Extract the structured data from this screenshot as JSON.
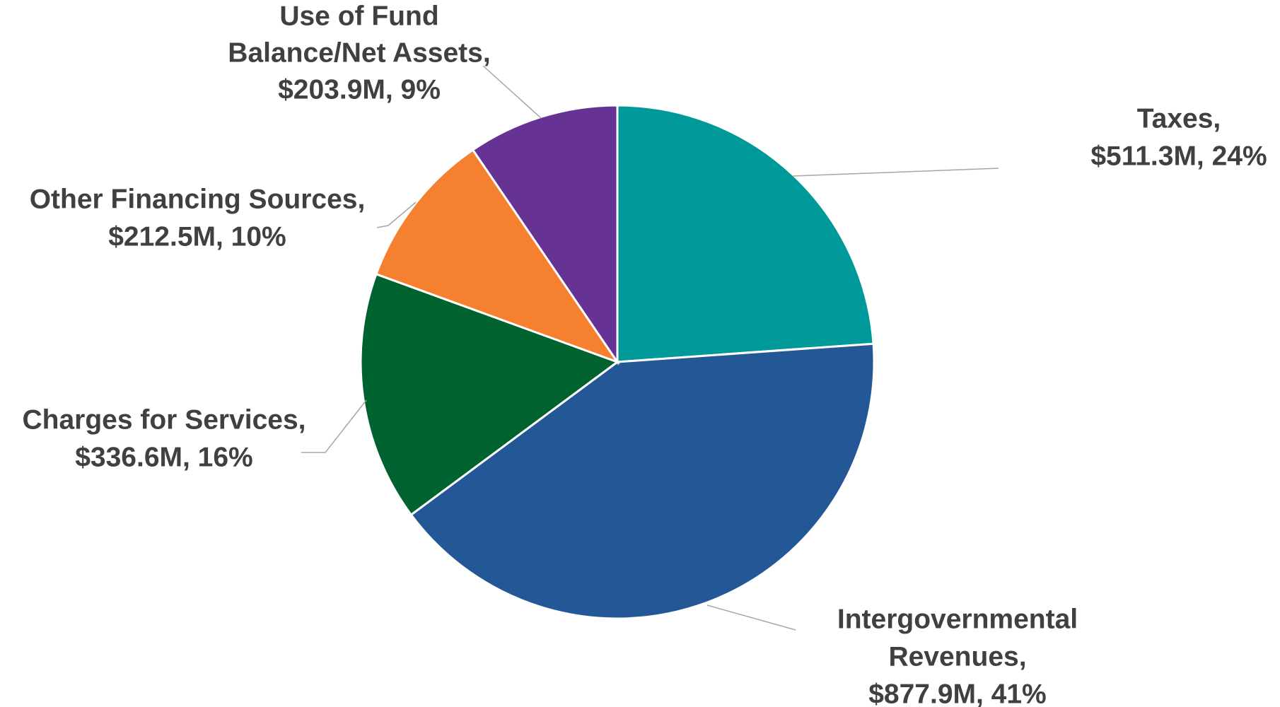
{
  "chart_data": {
    "type": "pie",
    "title": "",
    "slices": [
      {
        "name": "Taxes",
        "value": 511.3,
        "percent": 24,
        "color": "#00999A",
        "label_lines": [
          "Taxes,",
          "$511.3M, 24%"
        ]
      },
      {
        "name": "Intergovernmental Revenues",
        "value": 877.9,
        "percent": 41,
        "color": "#245795",
        "label_lines": [
          "Intergovernmental",
          "Revenues,",
          "$877.9M, 41%"
        ]
      },
      {
        "name": "Charges for Services",
        "value": 336.6,
        "percent": 16,
        "color": "#00622E",
        "label_lines": [
          "Charges for Services,",
          "$336.6M, 16%"
        ]
      },
      {
        "name": "Other Financing Sources",
        "value": 212.5,
        "percent": 10,
        "color": "#F58130",
        "label_lines": [
          "Other Financing Sources,",
          "$212.5M, 10%"
        ]
      },
      {
        "name": "Use of Fund Balance/Net Assets",
        "value": 203.9,
        "percent": 9,
        "color": "#663293",
        "label_lines": [
          "Use of Fund",
          "Balance/Net Assets,",
          "$203.9M, 9%"
        ]
      }
    ],
    "start_angle": "12 o'clock",
    "direction": "clockwise",
    "legend": "none",
    "data_labels": "outside-with-leader-lines",
    "colors": {
      "label_text": "#404040",
      "leader_line": "#a6a6a6",
      "slice_border": "#ffffff"
    }
  }
}
